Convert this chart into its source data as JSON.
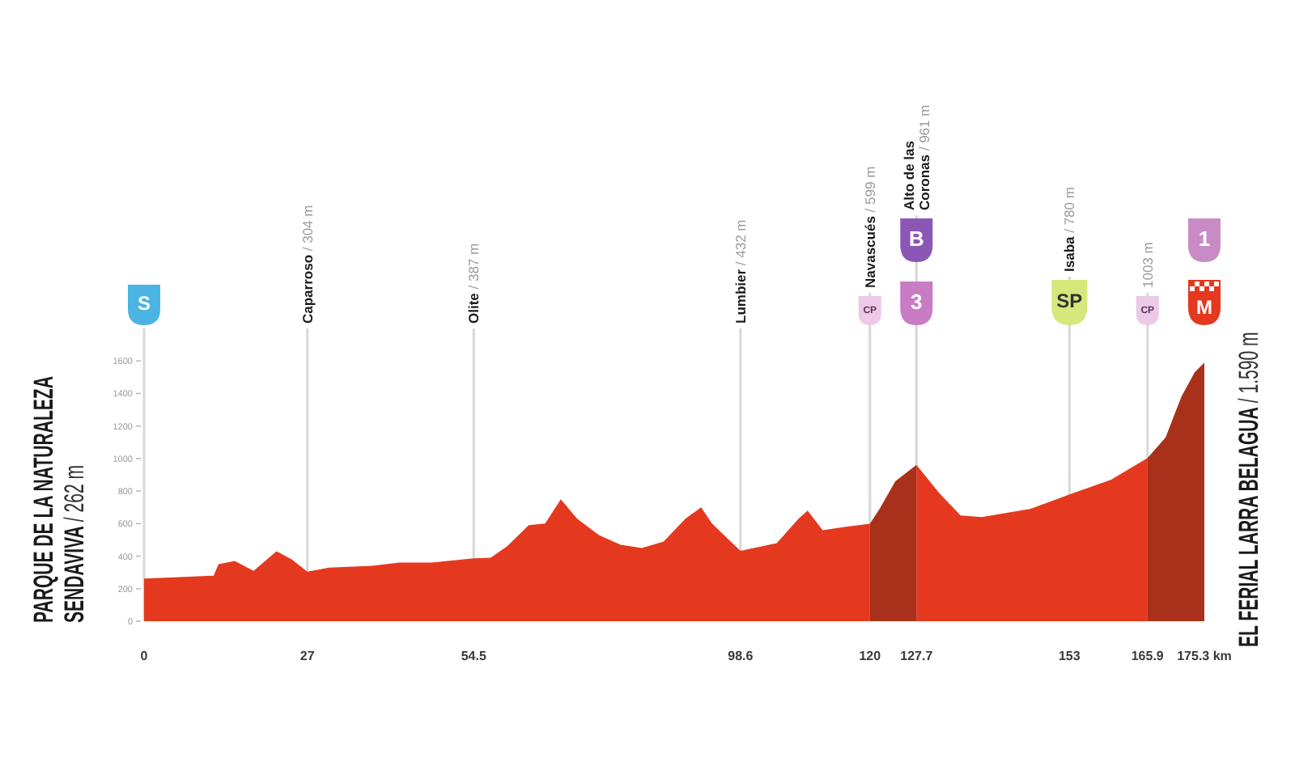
{
  "chart_data": {
    "type": "area",
    "x": [
      0,
      5,
      11.5,
      12.3,
      15,
      18.1,
      21.9,
      24.4,
      27,
      30.6,
      37.7,
      42.2,
      47.5,
      54.5,
      57.3,
      60,
      63.6,
      66.3,
      68.9,
      71.6,
      75.2,
      78.8,
      82.3,
      85.9,
      89.5,
      92.1,
      93.9,
      98.6,
      104.6,
      108.2,
      109.7,
      112.2,
      116,
      120,
      121.6,
      124.2,
      127.7,
      131.4,
      135,
      138.5,
      146.5,
      153,
      159.9,
      165.9,
      168.9,
      171.5,
      173.7,
      175.3
    ],
    "series": [
      {
        "color": "#e4391f",
        "values": [
          262,
          270,
          280,
          350,
          370,
          310,
          430,
          380,
          304,
          330,
          340,
          360,
          360,
          387,
          390,
          460,
          590,
          600,
          750,
          630,
          530,
          470,
          450,
          490,
          630,
          700,
          600,
          432,
          480,
          630,
          680,
          560,
          580,
          599,
          null,
          null,
          961,
          790,
          650,
          640,
          690,
          780,
          870,
          1003,
          null,
          null,
          null,
          null
        ]
      },
      {
        "color": "#a9301b",
        "values": [
          null,
          null,
          null,
          null,
          null,
          null,
          null,
          null,
          null,
          null,
          null,
          null,
          null,
          null,
          null,
          null,
          null,
          null,
          null,
          null,
          null,
          null,
          null,
          null,
          null,
          null,
          null,
          null,
          null,
          null,
          null,
          null,
          null,
          599,
          690,
          860,
          961,
          null,
          null,
          null,
          null,
          null,
          null,
          1003,
          1130,
          1380,
          1530,
          1590
        ]
      }
    ],
    "xlim": [
      0,
      175.3
    ],
    "xticks": [
      0,
      27,
      54.5,
      98.6,
      120,
      127.7,
      153,
      165.9,
      {
        "value": 175.3,
        "label": "175.3 km"
      }
    ],
    "ylim": [
      0,
      1800
    ],
    "yticks": [
      0,
      200,
      400,
      600,
      800,
      1000,
      1200,
      1400,
      1600
    ],
    "ref_lines": [
      {
        "axis": "x",
        "value": 27,
        "label": "Caparroso / 304 m",
        "color": "#d9d9d9"
      },
      {
        "axis": "x",
        "value": 54.5,
        "label": "Olite / 387 m",
        "color": "#d9d9d9"
      },
      {
        "axis": "x",
        "value": 98.6,
        "label": "Lumbier / 432 m",
        "color": "#d9d9d9"
      },
      {
        "axis": "x",
        "value": 120,
        "label": "Navascués / 599 m",
        "color": "#d9d9d9"
      },
      {
        "axis": "x",
        "value": 127.7,
        "label": "Alto de las Coronas / 961 m",
        "color": "#d9d9d9"
      },
      {
        "axis": "x",
        "value": 153,
        "label": "Isaba / 780 m",
        "color": "#d9d9d9"
      },
      {
        "axis": "x",
        "value": 165.9,
        "label": "1003 m",
        "color": "#d9d9d9"
      }
    ],
    "annotations": [
      "PARQUE DE LA NATURALEZA SENDAVIVA / 262 m",
      "EL FERIAL LARRA BELAGUA / 1.590 m",
      "S",
      "CP",
      "3",
      "B",
      "SP",
      "CP",
      "M",
      "1"
    ]
  }
}
